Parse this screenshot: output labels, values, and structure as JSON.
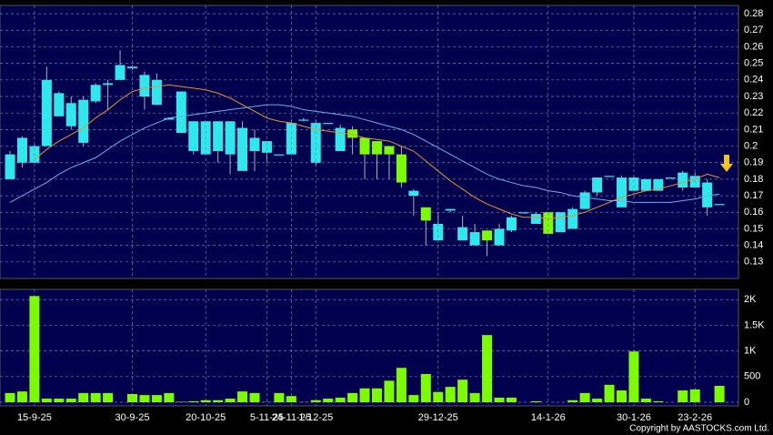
{
  "chart_data": [
    {
      "type": "candlestick",
      "up_color": "#2ee8ee",
      "down_color": "#7cfc00",
      "grid": true,
      "ylim": [
        0.12,
        0.285
      ],
      "yticks": [
        0.13,
        0.14,
        0.15,
        0.16,
        0.17,
        0.18,
        0.19,
        0.2,
        0.21,
        0.22,
        0.23,
        0.24,
        0.25,
        0.26,
        0.27,
        0.28
      ],
      "open": [
        0.18,
        0.19,
        0.19,
        0.2,
        0.218,
        0.212,
        0.202,
        0.227,
        0.237,
        0.24,
        0.247,
        0.23,
        0.225,
        0.216,
        0.208,
        0.197,
        0.195,
        0.197,
        0.195,
        0.185,
        0.197,
        0.196,
        0.195,
        0.195,
        0.216,
        0.19,
        0.214,
        0.197,
        0.21,
        0.205,
        0.203,
        0.2,
        0.195,
        0.17,
        0.163,
        0.143,
        0.161,
        0.143,
        0.14,
        0.149,
        0.14,
        0.149,
        0.16,
        0.153,
        0.16,
        0.148,
        0.15,
        0.162,
        0.172,
        0.182,
        0.163,
        0.173,
        0.173,
        0.173,
        0.181,
        0.175,
        0.175,
        0.163,
        0.165
      ],
      "high": [
        0.197,
        0.206,
        0.201,
        0.248,
        0.233,
        0.23,
        0.23,
        0.238,
        0.24,
        0.258,
        0.249,
        0.245,
        0.244,
        0.217,
        0.233,
        0.215,
        0.215,
        0.215,
        0.215,
        0.215,
        0.21,
        0.203,
        0.195,
        0.216,
        0.217,
        0.216,
        0.214,
        0.213,
        0.212,
        0.205,
        0.203,
        0.2,
        0.2,
        0.174,
        0.163,
        0.16,
        0.162,
        0.158,
        0.153,
        0.149,
        0.153,
        0.158,
        0.16,
        0.16,
        0.16,
        0.16,
        0.163,
        0.173,
        0.181,
        0.182,
        0.182,
        0.182,
        0.18,
        0.18,
        0.181,
        0.185,
        0.184,
        0.18,
        0.165
      ],
      "low": [
        0.18,
        0.187,
        0.19,
        0.2,
        0.218,
        0.21,
        0.2,
        0.226,
        0.222,
        0.24,
        0.246,
        0.222,
        0.225,
        0.216,
        0.208,
        0.195,
        0.195,
        0.19,
        0.183,
        0.185,
        0.185,
        0.19,
        0.195,
        0.195,
        0.215,
        0.188,
        0.214,
        0.197,
        0.195,
        0.18,
        0.18,
        0.18,
        0.175,
        0.158,
        0.14,
        0.143,
        0.16,
        0.143,
        0.14,
        0.1335,
        0.14,
        0.148,
        0.16,
        0.153,
        0.147,
        0.148,
        0.15,
        0.162,
        0.17,
        0.182,
        0.163,
        0.173,
        0.173,
        0.173,
        0.181,
        0.173,
        0.175,
        0.158,
        0.165
      ],
      "close": [
        0.195,
        0.205,
        0.2,
        0.24,
        0.232,
        0.226,
        0.228,
        0.237,
        0.238,
        0.249,
        0.248,
        0.243,
        0.24,
        0.217,
        0.233,
        0.215,
        0.215,
        0.215,
        0.215,
        0.211,
        0.205,
        0.203,
        0.195,
        0.214,
        0.216,
        0.214,
        0.214,
        0.211,
        0.205,
        0.195,
        0.195,
        0.195,
        0.178,
        0.173,
        0.155,
        0.153,
        0.162,
        0.151,
        0.148,
        0.143,
        0.15,
        0.157,
        0.16,
        0.159,
        0.147,
        0.16,
        0.162,
        0.172,
        0.181,
        0.182,
        0.181,
        0.181,
        0.18,
        0.18,
        0.181,
        0.184,
        0.182,
        0.178,
        0.165
      ],
      "series": [
        {
          "color": "#f0902a",
          "values": [
            null,
            null,
            0.192,
            0.198,
            0.203,
            0.207,
            0.211,
            0.217,
            0.222,
            0.228,
            0.233,
            0.235,
            0.236,
            0.237,
            0.236,
            0.235,
            0.234,
            0.232,
            0.229,
            0.225,
            0.221,
            0.217,
            0.215,
            0.214,
            0.212,
            0.21,
            0.209,
            0.208,
            0.207,
            0.205,
            0.204,
            0.203,
            0.2,
            0.197,
            0.191,
            0.185,
            0.179,
            0.174,
            0.169,
            0.165,
            0.162,
            0.159,
            0.157,
            0.157,
            0.156,
            0.157,
            0.158,
            0.16,
            0.163,
            0.166,
            0.169,
            0.171,
            0.173,
            0.174,
            0.176,
            0.178,
            0.18,
            0.183,
            0.181
          ]
        },
        {
          "color": "#5fb4f0",
          "values": [
            0.166,
            0.17,
            0.174,
            0.178,
            0.183,
            0.187,
            0.19,
            0.193,
            0.198,
            0.203,
            0.207,
            0.211,
            0.214,
            0.217,
            0.218,
            0.219,
            0.22,
            0.221,
            0.222,
            0.223,
            0.224,
            0.225,
            0.225,
            0.224,
            0.222,
            0.221,
            0.22,
            0.219,
            0.218,
            0.216,
            0.214,
            0.212,
            0.21,
            0.207,
            0.203,
            0.199,
            0.195,
            0.191,
            0.187,
            0.183,
            0.18,
            0.178,
            0.176,
            0.175,
            0.173,
            0.172,
            0.17,
            0.169,
            0.168,
            0.167,
            0.167,
            0.166,
            0.166,
            0.166,
            0.166,
            0.167,
            0.168,
            0.17,
            0.171
          ]
        }
      ]
    },
    {
      "type": "bar",
      "color": "#7cfc00",
      "grid": true,
      "ylim": [
        0,
        2200
      ],
      "yticks": [
        0,
        500,
        {
          "value": 1000,
          "label": "1K"
        },
        {
          "value": 1500,
          "label": "1.5K"
        },
        {
          "value": 2000,
          "label": "2K"
        }
      ],
      "categories": [
        null,
        null,
        "15-9-25",
        null,
        null,
        null,
        null,
        null,
        null,
        null,
        "30-9-25",
        null,
        null,
        null,
        null,
        null,
        "20-10-25",
        null,
        null,
        null,
        null,
        "5-11-25",
        null,
        "24-11-25",
        null,
        "1-12-25",
        null,
        null,
        null,
        null,
        null,
        null,
        null,
        null,
        null,
        "29-12-25",
        null,
        null,
        null,
        null,
        null,
        null,
        null,
        null,
        "14-1-26",
        null,
        null,
        null,
        null,
        null,
        null,
        "30-1-26",
        null,
        null,
        null,
        null,
        "23-2-26",
        null,
        null
      ],
      "values": [
        180,
        210,
        2070,
        70,
        70,
        70,
        180,
        180,
        180,
        0,
        160,
        140,
        140,
        180,
        10,
        20,
        40,
        40,
        70,
        210,
        180,
        5,
        180,
        120,
        5,
        40,
        70,
        90,
        180,
        270,
        270,
        420,
        670,
        140,
        550,
        200,
        300,
        440,
        180,
        1310,
        90,
        90,
        0,
        20,
        0,
        0,
        40,
        180,
        70,
        340,
        230,
        990,
        70,
        20,
        0,
        230,
        250,
        0,
        320
      ]
    },
    {
      "type": "text",
      "copyright": "Copyright by AASTOCKS.com Ltd."
    }
  ]
}
